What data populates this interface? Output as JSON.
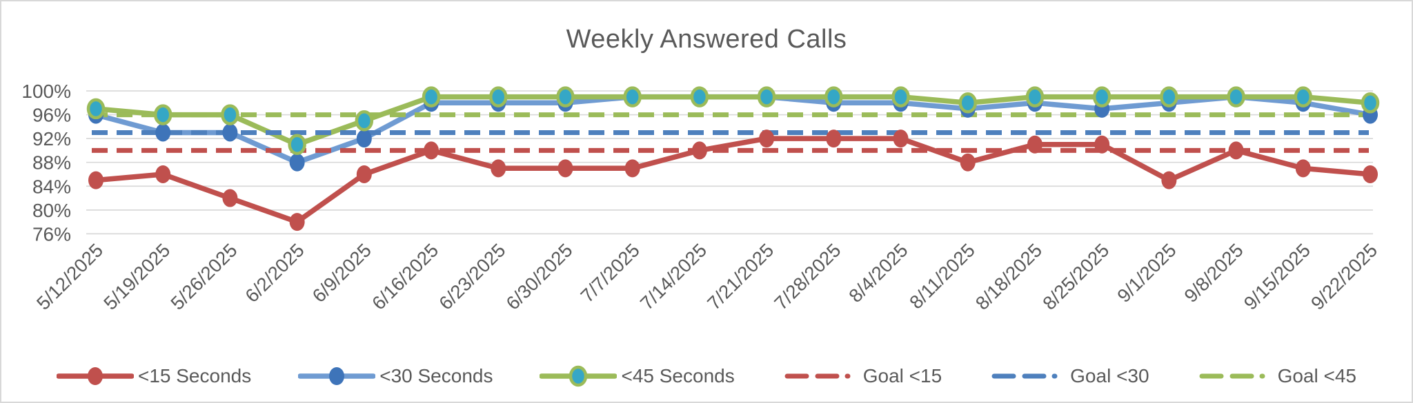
{
  "title": "Weekly Answered Calls",
  "colors": {
    "text": "#595959",
    "grid": "#d9d9d9",
    "red": "#c0504d",
    "blue_line": "#6f9bd2",
    "blue_marker": "#3e74b9",
    "blue_goal": "#4e80bd",
    "green": "#9bbb59",
    "teal_marker": "#35a7c6"
  },
  "chart_data": {
    "type": "line",
    "title": "Weekly Answered Calls",
    "x": [
      "5/12/2025",
      "5/19/2025",
      "5/26/2025",
      "6/2/2025",
      "6/9/2025",
      "6/16/2025",
      "6/23/2025",
      "6/30/2025",
      "7/7/2025",
      "7/14/2025",
      "7/21/2025",
      "7/28/2025",
      "8/4/2025",
      "8/11/2025",
      "8/18/2025",
      "8/25/2025",
      "9/1/2025",
      "9/8/2025",
      "9/15/2025",
      "9/22/2025"
    ],
    "y_axis": {
      "min": 76,
      "max": 100,
      "tick_step": 4,
      "tick_labels": [
        "100%",
        "96%",
        "92%",
        "88%",
        "84%",
        "80%",
        "76%"
      ],
      "format": "percent"
    },
    "grid": "horizontal",
    "legend_position": "bottom",
    "series": [
      {
        "name": "<15 Seconds",
        "style": "solid",
        "color": "#c0504d",
        "marker_fill": "#c0504d",
        "marker_stroke": "",
        "values": [
          85,
          86,
          82,
          78,
          86,
          90,
          87,
          87,
          87,
          90,
          92,
          92,
          92,
          88,
          91,
          91,
          85,
          90,
          87,
          86
        ]
      },
      {
        "name": "<30 Seconds",
        "style": "solid",
        "color": "#6f9bd2",
        "marker_fill": "#3e74b9",
        "marker_stroke": "",
        "values": [
          96,
          93,
          93,
          88,
          92,
          98,
          98,
          98,
          99,
          99,
          99,
          98,
          98,
          97,
          98,
          97,
          98,
          99,
          98,
          96
        ]
      },
      {
        "name": "<45 Seconds",
        "style": "solid",
        "color": "#9bbb59",
        "marker_fill": "#35a7c6",
        "marker_stroke": "#9bbb59",
        "values": [
          97,
          96,
          96,
          91,
          95,
          99,
          99,
          99,
          99,
          99,
          99,
          99,
          99,
          98,
          99,
          99,
          99,
          99,
          99,
          98
        ]
      },
      {
        "name": "Goal <15",
        "style": "dashed",
        "color": "#c0504d",
        "value": 90
      },
      {
        "name": "Goal <30",
        "style": "dashed",
        "color": "#4e80bd",
        "value": 93
      },
      {
        "name": "Goal <45",
        "style": "dashed",
        "color": "#9bbb59",
        "value": 96
      }
    ]
  }
}
